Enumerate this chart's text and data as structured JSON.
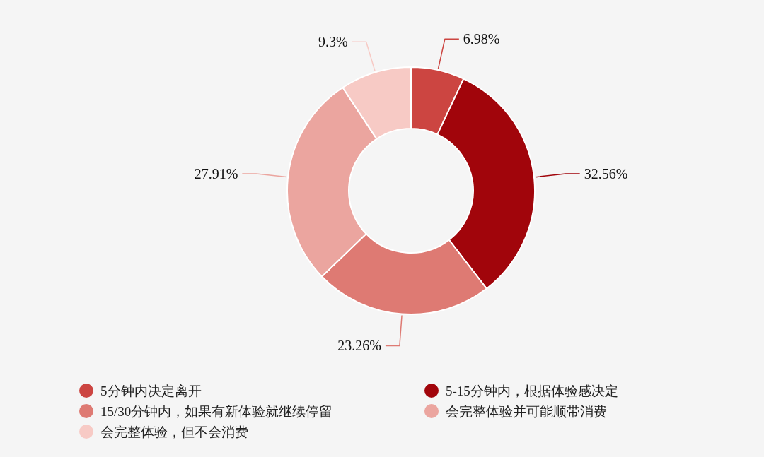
{
  "chart_data": {
    "type": "donut",
    "categories": [
      "5分钟内决定离开",
      "5-15分钟内，根据体验感决定",
      "15/30分钟内，如果有新体验就继续停留",
      "会完整体验并可能顺带消费",
      "会完整体验，但不会消费"
    ],
    "values": [
      6.98,
      32.56,
      23.26,
      27.91,
      9.3
    ],
    "colors": [
      "#cc4541",
      "#a1050b",
      "#de7a73",
      "#eba59f",
      "#f7cac5"
    ],
    "value_labels": [
      "6.98%",
      "32.56%",
      "23.26%",
      "27.91%",
      "9.3%"
    ],
    "legend": "bottom"
  }
}
